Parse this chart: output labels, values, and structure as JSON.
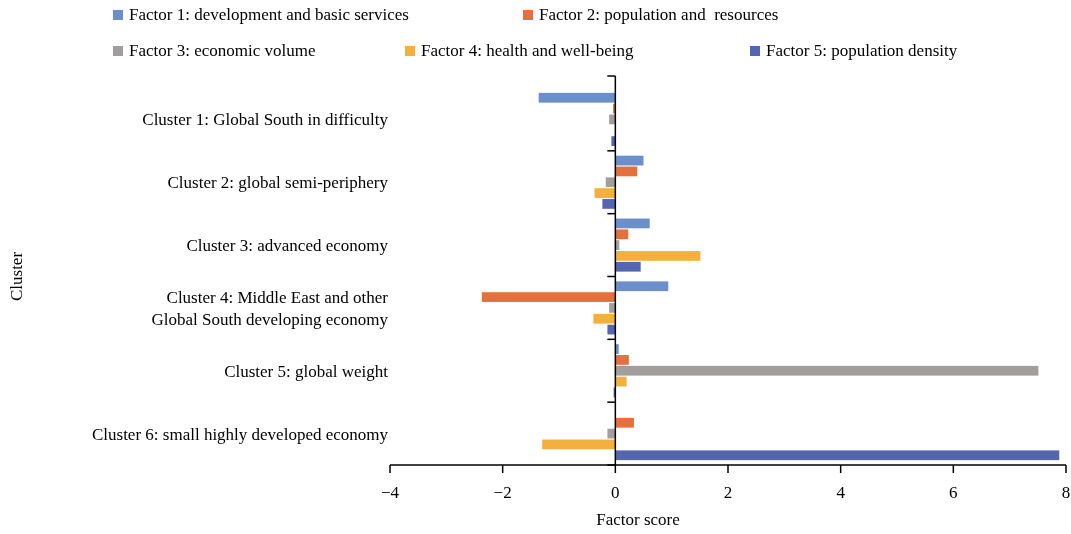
{
  "chart_data": {
    "type": "bar",
    "orientation": "horizontal",
    "xlabel": "Factor score",
    "ylabel": "Cluster",
    "categories": [
      "Cluster 1: Global South in difficulty",
      "Cluster 2: global semi-periphery",
      "Cluster 3: advanced economy",
      "Cluster 4: Middle East and other\nGlobal South developing economy",
      "Cluster 5: global weight",
      "Cluster 6: small highly developed economy"
    ],
    "series": [
      {
        "name": "Factor 1: development and basic services",
        "color": "#6a8fcb",
        "values": [
          -1.36,
          0.5,
          0.61,
          0.94,
          0.06,
          0
        ]
      },
      {
        "name": "Factor 2: population and  resources",
        "color": "#e4703c",
        "values": [
          -0.04,
          0.39,
          0.23,
          -2.37,
          0.24,
          0.33
        ]
      },
      {
        "name": "Factor 3: economic volume",
        "color": "#a19e9b",
        "values": [
          -0.11,
          -0.17,
          0.07,
          -0.11,
          7.51,
          -0.14
        ]
      },
      {
        "name": "Factor 4: health and well-being",
        "color": "#f4b03e",
        "values": [
          0,
          -0.37,
          1.51,
          -0.39,
          0.2,
          -1.3
        ]
      },
      {
        "name": "Factor 5: population density",
        "color": "#5566b0",
        "values": [
          -0.07,
          -0.23,
          0.45,
          -0.14,
          -0.03,
          7.88
        ]
      }
    ],
    "xlim": [
      -4,
      8
    ],
    "xticks": [
      {
        "value": -4,
        "label": "−4"
      },
      {
        "value": -2,
        "label": "−2"
      },
      0,
      2,
      4,
      6,
      8
    ],
    "legend": "top"
  }
}
